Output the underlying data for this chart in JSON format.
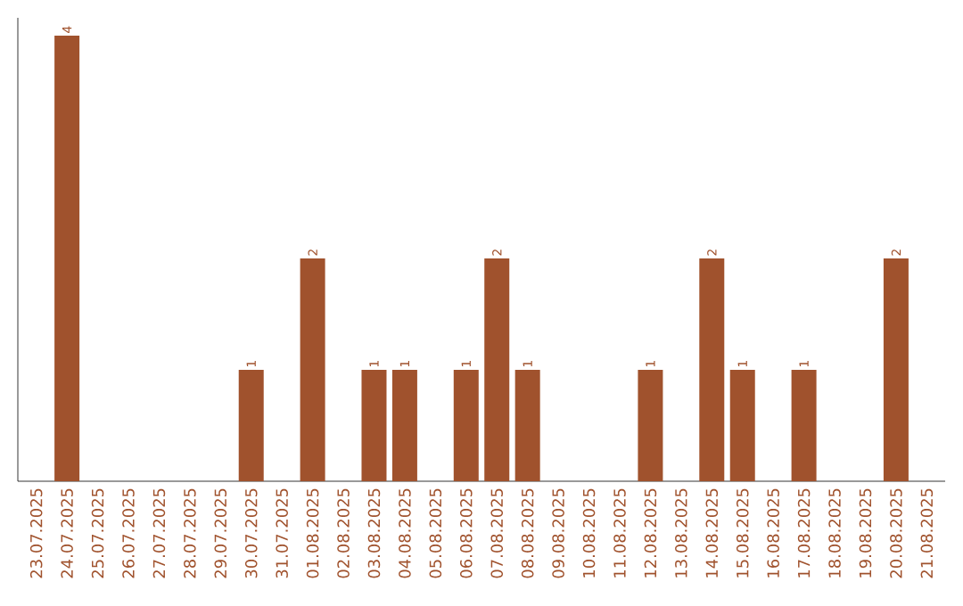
{
  "chart_data": {
    "type": "bar",
    "categories": [
      "23.07.2025",
      "24.07.2025",
      "25.07.2025",
      "26.07.2025",
      "27.07.2025",
      "28.07.2025",
      "29.07.2025",
      "30.07.2025",
      "31.07.2025",
      "01.08.2025",
      "02.08.2025",
      "03.08.2025",
      "04.08.2025",
      "05.08.2025",
      "06.08.2025",
      "07.08.2025",
      "08.08.2025",
      "09.08.2025",
      "10.08.2025",
      "11.08.2025",
      "12.08.2025",
      "13.08.2025",
      "14.08.2025",
      "15.08.2025",
      "16.08.2025",
      "17.08.2025",
      "18.08.2025",
      "19.08.2025",
      "20.08.2025",
      "21.08.2025"
    ],
    "values": [
      0,
      4,
      0,
      0,
      0,
      0,
      0,
      1,
      0,
      2,
      0,
      1,
      1,
      0,
      1,
      2,
      1,
      0,
      0,
      0,
      1,
      0,
      2,
      1,
      0,
      1,
      0,
      0,
      2,
      0
    ],
    "value_labels": [
      null,
      "4",
      null,
      null,
      null,
      null,
      null,
      "1",
      null,
      "2",
      null,
      "1",
      "1",
      null,
      "1",
      "2",
      "1",
      null,
      null,
      null,
      "1",
      null,
      "2",
      "1",
      null,
      "1",
      null,
      null,
      "2",
      null
    ],
    "color": "#a0522d"
  }
}
